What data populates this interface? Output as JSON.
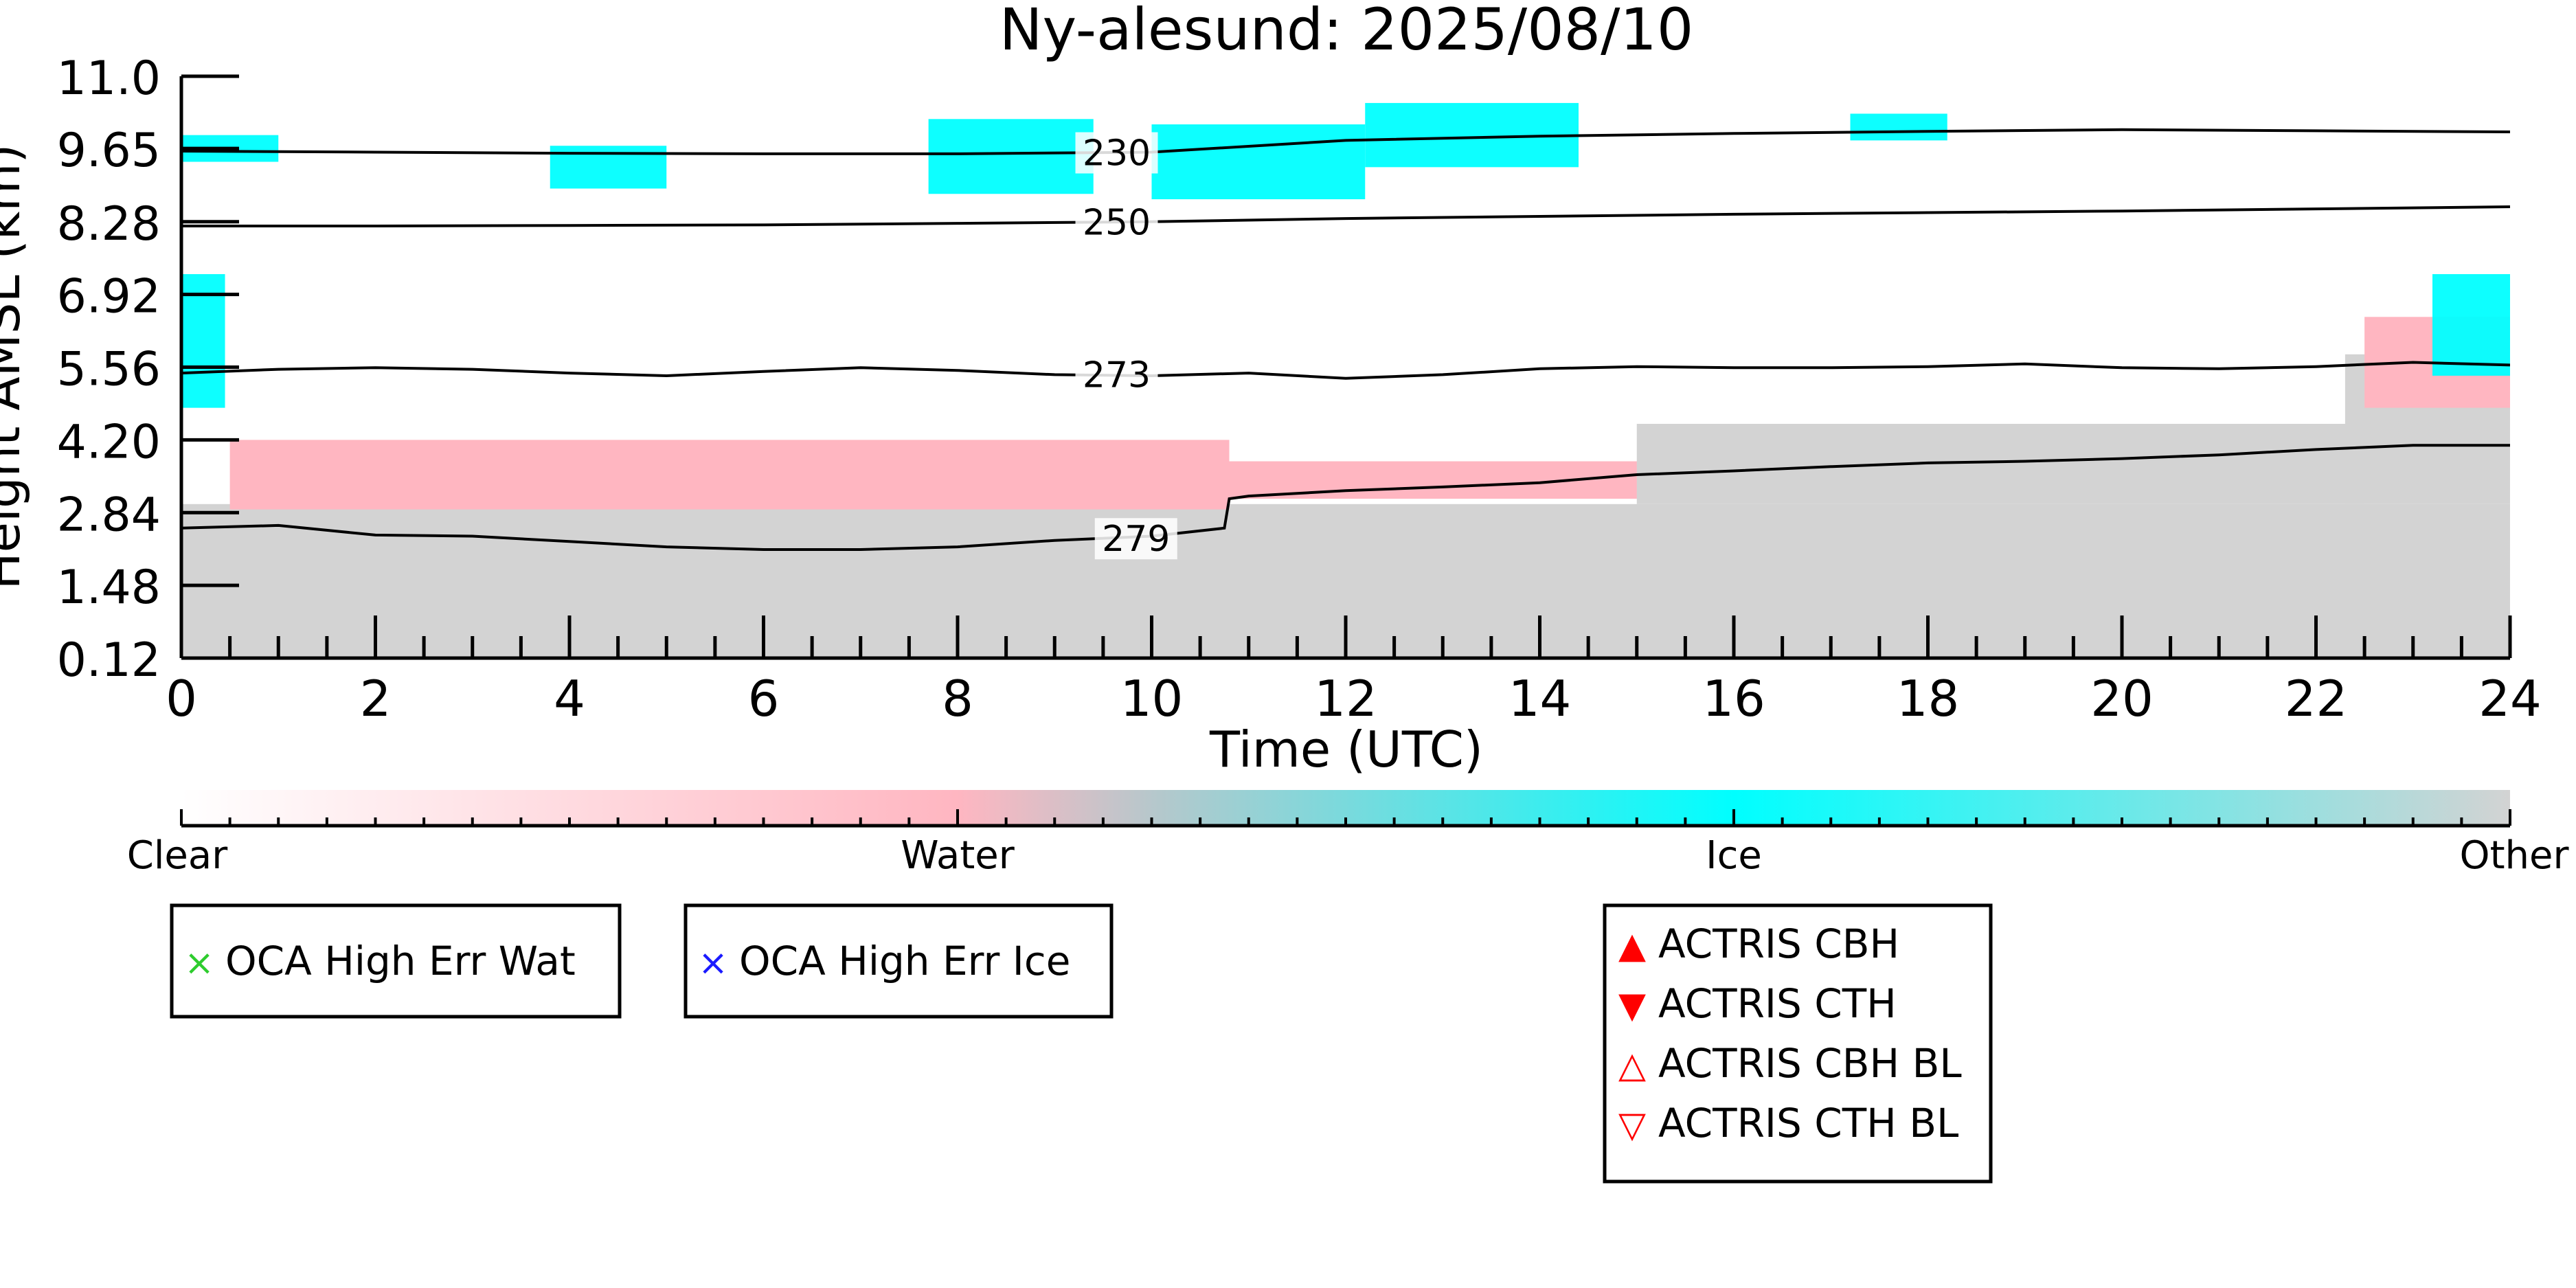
{
  "chart_data": {
    "type": "heatmap",
    "title": "Ny-alesund: 2025/08/10",
    "xlabel": "Time (UTC)",
    "ylabel": "Height AMSL (km)",
    "xlim": [
      0,
      24
    ],
    "ylim": [
      0.12,
      11.0
    ],
    "x_ticks": [
      0,
      2,
      4,
      6,
      8,
      10,
      12,
      14,
      16,
      18,
      20,
      22,
      24
    ],
    "y_ticks": [
      "0.12",
      "1.48",
      "2.84",
      "4.20",
      "5.56",
      "6.92",
      "8.28",
      "9.65",
      "11.0"
    ],
    "categories": [
      "Clear",
      "Water",
      "Ice",
      "Other"
    ],
    "colors": {
      "Clear": "#ffffff",
      "Water": "#ffb6c1",
      "Ice": "#00ffff",
      "Other": "#d3d3d3",
      "contour": "#000000"
    },
    "contours": [
      {
        "label": "230",
        "points": [
          [
            0,
            9.6
          ],
          [
            2,
            9.58
          ],
          [
            4,
            9.56
          ],
          [
            6,
            9.55
          ],
          [
            8,
            9.55
          ],
          [
            10,
            9.58
          ],
          [
            12,
            9.8
          ],
          [
            14,
            9.88
          ],
          [
            16,
            9.93
          ],
          [
            18,
            9.97
          ],
          [
            20,
            10.0
          ],
          [
            22,
            9.98
          ],
          [
            24,
            9.96
          ]
        ]
      },
      {
        "label": "250",
        "points": [
          [
            0,
            8.2
          ],
          [
            2,
            8.2
          ],
          [
            4,
            8.21
          ],
          [
            6,
            8.22
          ],
          [
            8,
            8.25
          ],
          [
            10,
            8.28
          ],
          [
            12,
            8.34
          ],
          [
            14,
            8.38
          ],
          [
            16,
            8.42
          ],
          [
            18,
            8.45
          ],
          [
            20,
            8.48
          ],
          [
            22,
            8.52
          ],
          [
            24,
            8.56
          ]
        ]
      },
      {
        "label": "273",
        "points": [
          [
            0,
            5.45
          ],
          [
            1,
            5.52
          ],
          [
            2,
            5.55
          ],
          [
            3,
            5.52
          ],
          [
            4,
            5.45
          ],
          [
            5,
            5.4
          ],
          [
            6,
            5.48
          ],
          [
            7,
            5.55
          ],
          [
            8,
            5.5
          ],
          [
            9,
            5.42
          ],
          [
            10,
            5.4
          ],
          [
            11,
            5.45
          ],
          [
            12,
            5.35
          ],
          [
            13,
            5.42
          ],
          [
            14,
            5.53
          ],
          [
            15,
            5.57
          ],
          [
            16,
            5.55
          ],
          [
            17,
            5.55
          ],
          [
            18,
            5.57
          ],
          [
            19,
            5.62
          ],
          [
            20,
            5.55
          ],
          [
            21,
            5.53
          ],
          [
            22,
            5.57
          ],
          [
            23,
            5.65
          ],
          [
            24,
            5.6
          ]
        ]
      },
      {
        "label": "279",
        "points": [
          [
            0,
            2.55
          ],
          [
            1,
            2.6
          ],
          [
            2,
            2.42
          ],
          [
            3,
            2.4
          ],
          [
            4,
            2.3
          ],
          [
            5,
            2.2
          ],
          [
            6,
            2.15
          ],
          [
            7,
            2.15
          ],
          [
            8,
            2.2
          ],
          [
            9,
            2.32
          ],
          [
            10,
            2.4
          ],
          [
            10.75,
            2.55
          ],
          [
            10.8,
            3.1
          ],
          [
            11,
            3.15
          ],
          [
            12,
            3.25
          ],
          [
            13,
            3.32
          ],
          [
            14,
            3.4
          ],
          [
            15,
            3.55
          ],
          [
            16,
            3.62
          ],
          [
            17,
            3.7
          ],
          [
            18,
            3.77
          ],
          [
            19,
            3.8
          ],
          [
            20,
            3.85
          ],
          [
            21,
            3.92
          ],
          [
            22,
            4.02
          ],
          [
            23,
            4.1
          ],
          [
            24,
            4.1
          ]
        ]
      }
    ],
    "regions": [
      {
        "category": "Other",
        "x": [
          0,
          24
        ],
        "y": [
          0.12,
          3.0
        ]
      },
      {
        "category": "Water",
        "x": [
          0.5,
          10.8
        ],
        "y": [
          2.9,
          4.2
        ]
      },
      {
        "category": "Water",
        "x": [
          10.8,
          15.9
        ],
        "y": [
          3.1,
          3.8
        ]
      },
      {
        "category": "Other",
        "x": [
          15,
          22.5
        ],
        "y": [
          3.0,
          4.5
        ]
      },
      {
        "category": "Other",
        "x": [
          22.3,
          24
        ],
        "y": [
          3.0,
          5.8
        ]
      },
      {
        "category": "Water",
        "x": [
          22.5,
          24
        ],
        "y": [
          4.8,
          6.5
        ]
      },
      {
        "category": "Ice",
        "x": [
          0,
          0.45
        ],
        "y": [
          4.8,
          7.3
        ]
      },
      {
        "category": "Ice",
        "x": [
          23.2,
          24
        ],
        "y": [
          5.4,
          7.3
        ]
      },
      {
        "category": "Ice",
        "x": [
          0,
          1.0
        ],
        "y": [
          9.4,
          9.9
        ]
      },
      {
        "category": "Ice",
        "x": [
          3.8,
          5.0
        ],
        "y": [
          8.9,
          9.7
        ]
      },
      {
        "category": "Ice",
        "x": [
          7.7,
          9.4
        ],
        "y": [
          8.8,
          10.2
        ]
      },
      {
        "category": "Ice",
        "x": [
          10.0,
          12.2
        ],
        "y": [
          8.7,
          10.1
        ]
      },
      {
        "category": "Ice",
        "x": [
          12.2,
          14.4
        ],
        "y": [
          9.3,
          10.5
        ]
      },
      {
        "category": "Ice",
        "x": [
          17.2,
          18.2
        ],
        "y": [
          9.8,
          10.3
        ]
      }
    ],
    "legends": [
      {
        "items": [
          {
            "marker": "×",
            "color": "#2ecc2e",
            "label": "OCA High Err Wat"
          }
        ]
      },
      {
        "items": [
          {
            "marker": "×",
            "color": "#1a1aff",
            "label": "OCA High Err Ice"
          }
        ]
      },
      {
        "items": [
          {
            "marker": "▲",
            "color": "#ff0000",
            "label": "ACTRIS CBH"
          },
          {
            "marker": "▼",
            "color": "#ff0000",
            "label": "ACTRIS CTH"
          },
          {
            "marker": "△",
            "color": "#ff0000",
            "label": "ACTRIS CBH BL"
          },
          {
            "marker": "▽",
            "color": "#ff0000",
            "label": "ACTRIS CTH BL"
          }
        ]
      }
    ]
  }
}
